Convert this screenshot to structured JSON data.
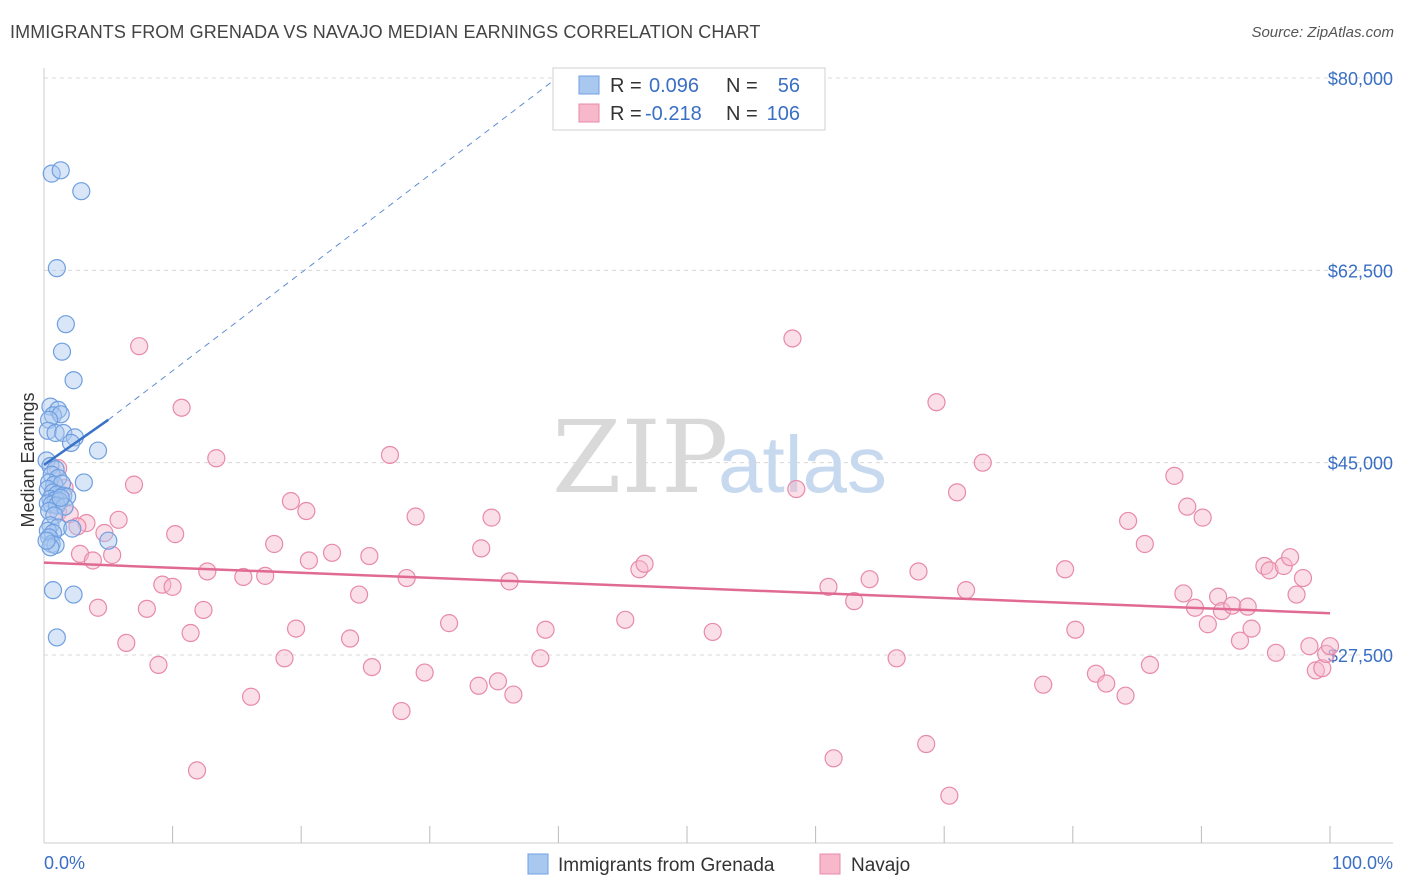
{
  "header": {
    "title": "IMMIGRANTS FROM GRENADA VS NAVAJO MEDIAN EARNINGS CORRELATION CHART",
    "source": "Source: ZipAtlas.com"
  },
  "legend": {
    "r_label": "R =",
    "n_label": "N =",
    "rows": [
      {
        "r": "0.096",
        "n": "56"
      },
      {
        "r": "-0.218",
        "n": "106"
      }
    ]
  },
  "watermark": {
    "zip": "ZIP",
    "atlas": "atlas"
  },
  "chart_data": {
    "type": "scatter",
    "title": "IMMIGRANTS FROM GRENADA VS NAVAJO MEDIAN EARNINGS CORRELATION CHART",
    "ylabel": "Median Earnings",
    "xlabel": "",
    "x_tick_labels": [
      "0.0%",
      "100.0%"
    ],
    "y_ticks": [
      {
        "value": 27500,
        "label": "$27,500"
      },
      {
        "value": 45000,
        "label": "$45,000"
      },
      {
        "value": 62500,
        "label": "$62,500"
      },
      {
        "value": 80000,
        "label": "$80,000"
      }
    ],
    "xlim": [
      0,
      100
    ],
    "ylim": [
      10000,
      82000
    ],
    "grid": "horizontal dashed",
    "legend_placement": "top-center",
    "colors": {
      "grenada_fill": "#a9c8f0",
      "grenada_stroke": "#6f9fe0",
      "grenada_line": "#3a72c8",
      "navajo_fill": "#f7b8cc",
      "navajo_stroke": "#e88aa8",
      "navajo_line": "#e06a94",
      "axis_text": "#3a6fc4",
      "grid": "#d8d8d8"
    },
    "series": [
      {
        "name": "Immigrants from Grenada",
        "r": 0.096,
        "n": 56,
        "trend": {
          "x": [
            0,
            5
          ],
          "y": [
            44800,
            48900
          ],
          "dashed_to": [
            41,
            81000
          ]
        },
        "points": [
          {
            "x": 0.6,
            "y": 71300
          },
          {
            "x": 1.3,
            "y": 71600
          },
          {
            "x": 2.9,
            "y": 69700
          },
          {
            "x": 1.0,
            "y": 62700
          },
          {
            "x": 1.7,
            "y": 57600
          },
          {
            "x": 1.4,
            "y": 55100
          },
          {
            "x": 2.3,
            "y": 52500
          },
          {
            "x": 0.5,
            "y": 50100
          },
          {
            "x": 1.1,
            "y": 49800
          },
          {
            "x": 0.7,
            "y": 49300
          },
          {
            "x": 1.3,
            "y": 49400
          },
          {
            "x": 0.4,
            "y": 48900
          },
          {
            "x": 0.3,
            "y": 47900
          },
          {
            "x": 0.9,
            "y": 47700
          },
          {
            "x": 1.5,
            "y": 47700
          },
          {
            "x": 2.4,
            "y": 47300
          },
          {
            "x": 2.1,
            "y": 46800
          },
          {
            "x": 4.2,
            "y": 46100
          },
          {
            "x": 0.2,
            "y": 45200
          },
          {
            "x": 0.5,
            "y": 44700
          },
          {
            "x": 0.9,
            "y": 44400
          },
          {
            "x": 0.6,
            "y": 43900
          },
          {
            "x": 1.1,
            "y": 43600
          },
          {
            "x": 0.4,
            "y": 43200
          },
          {
            "x": 0.8,
            "y": 43000
          },
          {
            "x": 1.4,
            "y": 43100
          },
          {
            "x": 3.1,
            "y": 43200
          },
          {
            "x": 0.3,
            "y": 42600
          },
          {
            "x": 0.7,
            "y": 42300
          },
          {
            "x": 1.0,
            "y": 42100
          },
          {
            "x": 1.5,
            "y": 42000
          },
          {
            "x": 1.8,
            "y": 41900
          },
          {
            "x": 0.5,
            "y": 41700
          },
          {
            "x": 0.9,
            "y": 41600
          },
          {
            "x": 1.2,
            "y": 41500
          },
          {
            "x": 0.3,
            "y": 41300
          },
          {
            "x": 0.6,
            "y": 41200
          },
          {
            "x": 1.0,
            "y": 41100
          },
          {
            "x": 1.6,
            "y": 41000
          },
          {
            "x": 0.4,
            "y": 40600
          },
          {
            "x": 0.8,
            "y": 40200
          },
          {
            "x": 0.5,
            "y": 39300
          },
          {
            "x": 1.1,
            "y": 39100
          },
          {
            "x": 2.2,
            "y": 39000
          },
          {
            "x": 0.3,
            "y": 38800
          },
          {
            "x": 0.7,
            "y": 38600
          },
          {
            "x": 0.4,
            "y": 38200
          },
          {
            "x": 5.0,
            "y": 37900
          },
          {
            "x": 0.6,
            "y": 37600
          },
          {
            "x": 0.9,
            "y": 37500
          },
          {
            "x": 0.5,
            "y": 37300
          },
          {
            "x": 0.2,
            "y": 37900
          },
          {
            "x": 0.7,
            "y": 33400
          },
          {
            "x": 2.3,
            "y": 33000
          },
          {
            "x": 1.0,
            "y": 29100
          },
          {
            "x": 1.3,
            "y": 41800
          }
        ]
      },
      {
        "name": "Navajo",
        "r": -0.218,
        "n": 106,
        "trend": {
          "x": [
            0,
            100
          ],
          "y": [
            35900,
            31300
          ]
        },
        "points": [
          {
            "x": 7.4,
            "y": 55600
          },
          {
            "x": 10.7,
            "y": 50000
          },
          {
            "x": 13.4,
            "y": 45400
          },
          {
            "x": 7.0,
            "y": 43000
          },
          {
            "x": 1.1,
            "y": 44500
          },
          {
            "x": 1.6,
            "y": 42700
          },
          {
            "x": 1.2,
            "y": 41500
          },
          {
            "x": 1.1,
            "y": 40500
          },
          {
            "x": 2.0,
            "y": 40300
          },
          {
            "x": 3.3,
            "y": 39500
          },
          {
            "x": 5.8,
            "y": 39800
          },
          {
            "x": 2.6,
            "y": 39200
          },
          {
            "x": 4.7,
            "y": 38600
          },
          {
            "x": 10.2,
            "y": 38500
          },
          {
            "x": 2.8,
            "y": 36700
          },
          {
            "x": 3.8,
            "y": 36100
          },
          {
            "x": 5.3,
            "y": 36600
          },
          {
            "x": 12.7,
            "y": 35100
          },
          {
            "x": 9.2,
            "y": 33900
          },
          {
            "x": 10.0,
            "y": 33700
          },
          {
            "x": 4.2,
            "y": 31800
          },
          {
            "x": 8.0,
            "y": 31700
          },
          {
            "x": 12.4,
            "y": 31600
          },
          {
            "x": 11.4,
            "y": 29500
          },
          {
            "x": 6.4,
            "y": 28600
          },
          {
            "x": 8.9,
            "y": 26600
          },
          {
            "x": 11.9,
            "y": 17000
          },
          {
            "x": 15.5,
            "y": 34600
          },
          {
            "x": 17.2,
            "y": 34700
          },
          {
            "x": 16.1,
            "y": 23700
          },
          {
            "x": 17.9,
            "y": 37600
          },
          {
            "x": 19.2,
            "y": 41500
          },
          {
            "x": 20.4,
            "y": 40600
          },
          {
            "x": 18.7,
            "y": 27200
          },
          {
            "x": 19.6,
            "y": 29900
          },
          {
            "x": 20.6,
            "y": 36100
          },
          {
            "x": 22.4,
            "y": 36800
          },
          {
            "x": 23.8,
            "y": 29000
          },
          {
            "x": 24.5,
            "y": 33000
          },
          {
            "x": 25.3,
            "y": 36500
          },
          {
            "x": 25.5,
            "y": 26400
          },
          {
            "x": 26.9,
            "y": 45700
          },
          {
            "x": 27.8,
            "y": 22400
          },
          {
            "x": 28.2,
            "y": 34500
          },
          {
            "x": 28.9,
            "y": 40100
          },
          {
            "x": 29.6,
            "y": 25900
          },
          {
            "x": 31.5,
            "y": 30400
          },
          {
            "x": 34.0,
            "y": 37200
          },
          {
            "x": 34.8,
            "y": 40000
          },
          {
            "x": 33.8,
            "y": 24700
          },
          {
            "x": 35.3,
            "y": 25100
          },
          {
            "x": 36.2,
            "y": 34200
          },
          {
            "x": 36.5,
            "y": 23900
          },
          {
            "x": 38.6,
            "y": 27200
          },
          {
            "x": 39.0,
            "y": 29800
          },
          {
            "x": 46.3,
            "y": 35300
          },
          {
            "x": 46.7,
            "y": 35800
          },
          {
            "x": 45.2,
            "y": 30700
          },
          {
            "x": 52.0,
            "y": 29600
          },
          {
            "x": 58.5,
            "y": 42600
          },
          {
            "x": 58.2,
            "y": 56300
          },
          {
            "x": 61.0,
            "y": 33700
          },
          {
            "x": 61.4,
            "y": 18100
          },
          {
            "x": 63.0,
            "y": 32400
          },
          {
            "x": 64.2,
            "y": 34400
          },
          {
            "x": 66.3,
            "y": 27200
          },
          {
            "x": 68.0,
            "y": 35100
          },
          {
            "x": 69.4,
            "y": 50500
          },
          {
            "x": 68.6,
            "y": 19400
          },
          {
            "x": 70.4,
            "y": 14700
          },
          {
            "x": 71.0,
            "y": 42300
          },
          {
            "x": 71.7,
            "y": 33400
          },
          {
            "x": 73.0,
            "y": 45000
          },
          {
            "x": 77.7,
            "y": 24800
          },
          {
            "x": 79.4,
            "y": 35300
          },
          {
            "x": 80.2,
            "y": 29800
          },
          {
            "x": 81.8,
            "y": 25800
          },
          {
            "x": 82.6,
            "y": 24900
          },
          {
            "x": 84.3,
            "y": 39700
          },
          {
            "x": 84.1,
            "y": 23800
          },
          {
            "x": 85.6,
            "y": 37600
          },
          {
            "x": 86.0,
            "y": 26600
          },
          {
            "x": 87.9,
            "y": 43800
          },
          {
            "x": 88.6,
            "y": 33100
          },
          {
            "x": 88.9,
            "y": 41000
          },
          {
            "x": 89.5,
            "y": 31800
          },
          {
            "x": 90.1,
            "y": 40000
          },
          {
            "x": 90.5,
            "y": 30300
          },
          {
            "x": 91.3,
            "y": 32800
          },
          {
            "x": 91.6,
            "y": 31500
          },
          {
            "x": 92.4,
            "y": 32000
          },
          {
            "x": 93.0,
            "y": 28800
          },
          {
            "x": 93.6,
            "y": 31900
          },
          {
            "x": 93.9,
            "y": 29900
          },
          {
            "x": 94.9,
            "y": 35600
          },
          {
            "x": 95.3,
            "y": 35200
          },
          {
            "x": 95.8,
            "y": 27700
          },
          {
            "x": 96.4,
            "y": 35600
          },
          {
            "x": 96.9,
            "y": 36400
          },
          {
            "x": 97.4,
            "y": 33000
          },
          {
            "x": 97.9,
            "y": 34500
          },
          {
            "x": 98.4,
            "y": 28300
          },
          {
            "x": 98.9,
            "y": 26100
          },
          {
            "x": 99.4,
            "y": 26300
          },
          {
            "x": 99.7,
            "y": 27600
          },
          {
            "x": 100.0,
            "y": 28300
          }
        ]
      }
    ]
  }
}
